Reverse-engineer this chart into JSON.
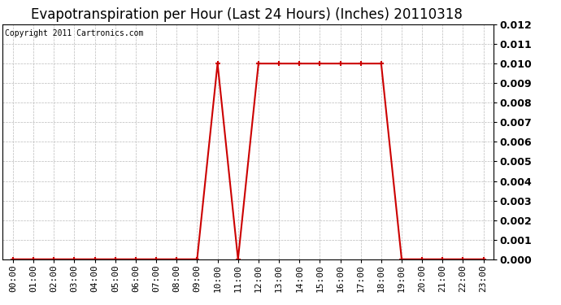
{
  "title": "Evapotranspiration per Hour (Last 24 Hours) (Inches) 20110318",
  "copyright": "Copyright 2011 Cartronics.com",
  "hours": [
    "00:00",
    "01:00",
    "02:00",
    "03:00",
    "04:00",
    "05:00",
    "06:00",
    "07:00",
    "08:00",
    "09:00",
    "10:00",
    "11:00",
    "12:00",
    "13:00",
    "14:00",
    "15:00",
    "16:00",
    "17:00",
    "18:00",
    "19:00",
    "20:00",
    "21:00",
    "22:00",
    "23:00"
  ],
  "values": [
    0.0,
    0.0,
    0.0,
    0.0,
    0.0,
    0.0,
    0.0,
    0.0,
    0.0,
    0.0,
    0.01,
    0.0,
    0.01,
    0.01,
    0.01,
    0.01,
    0.01,
    0.01,
    0.01,
    0.0,
    0.0,
    0.0,
    0.0,
    0.0
  ],
  "line_color": "#cc0000",
  "marker": "+",
  "marker_size": 5,
  "marker_color": "#cc0000",
  "grid_color": "#bbbbbb",
  "background_color": "#ffffff",
  "ylim": [
    0.0,
    0.012
  ],
  "ytick_values": [
    0.0,
    0.001,
    0.002,
    0.003,
    0.004,
    0.005,
    0.006,
    0.007,
    0.008,
    0.009,
    0.01,
    0.011,
    0.012
  ],
  "title_fontsize": 12,
  "copyright_fontsize": 7,
  "tick_fontsize": 8,
  "ytick_fontsize": 9,
  "line_width": 1.5,
  "fig_width": 6.9,
  "fig_height": 3.75
}
